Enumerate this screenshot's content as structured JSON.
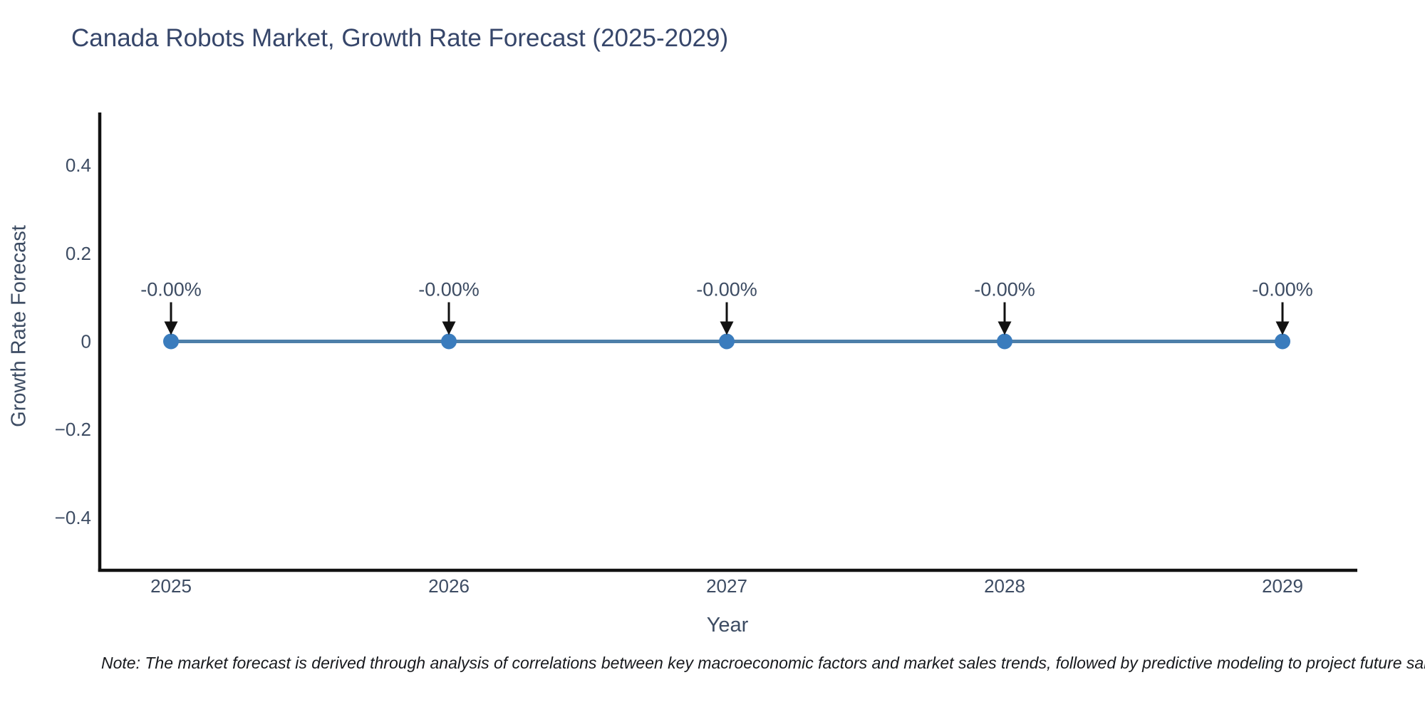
{
  "chart_data": {
    "type": "line",
    "title": "Canada Robots Market, Growth Rate Forecast (2025-2029)",
    "xlabel": "Year",
    "ylabel": "Growth Rate Forecast",
    "x": [
      2025,
      2026,
      2027,
      2028,
      2029
    ],
    "series": [
      {
        "name": "Growth Rate Forecast",
        "values": [
          0,
          0,
          0,
          0,
          0
        ],
        "point_labels": [
          "-0.00%",
          "-0.00%",
          "-0.00%",
          "-0.00%",
          "-0.00%"
        ]
      }
    ],
    "xtick_labels": [
      "2025",
      "2026",
      "2027",
      "2028",
      "2029"
    ],
    "yticks": [
      0.4,
      0.2,
      0,
      -0.2,
      -0.4
    ],
    "ytick_labels": [
      "0.4",
      "0.2",
      "0",
      "−0.2",
      "−0.4"
    ],
    "ylim": [
      -0.52,
      0.52
    ],
    "grid": false,
    "legend": false,
    "colors": {
      "line": "#4d7fa9",
      "marker": "#3a7cbd",
      "axis": "#111111",
      "arrow": "#111111",
      "tick_text": "#3d4c63",
      "annotation_text": "#3d4c63"
    },
    "note": "Note: The market forecast is derived through analysis of correlations between key macroeconomic factors and market sales trends, followed by predictive modeling to project future sales."
  }
}
